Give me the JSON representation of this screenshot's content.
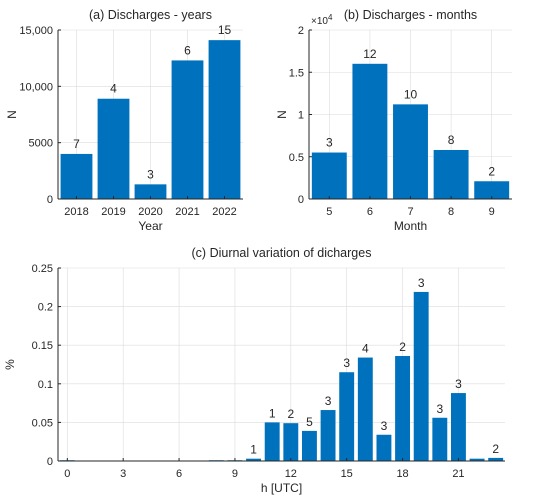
{
  "chart_data": [
    {
      "type": "bar",
      "title": "(a) Discharges - years",
      "xlabel": "Year",
      "ylabel": "N",
      "categories": [
        "2018",
        "2019",
        "2020",
        "2021",
        "2022"
      ],
      "values": [
        4000,
        8900,
        1300,
        12300,
        14100
      ],
      "bar_labels": [
        "7",
        "4",
        "3",
        "6",
        "15"
      ],
      "ylim": [
        0,
        15000
      ],
      "yticks": [
        0,
        5000,
        10000,
        15000
      ],
      "ytick_labels": [
        "0",
        "5000",
        "10,000",
        "15,000"
      ],
      "grid": true,
      "color": "#0072BD"
    },
    {
      "type": "bar",
      "title": "(b) Discharges - months",
      "xlabel": "Month",
      "ylabel": "N",
      "exponent_label": "×10^4",
      "categories": [
        "5",
        "6",
        "7",
        "8",
        "9"
      ],
      "values": [
        0.55,
        1.6,
        1.12,
        0.58,
        0.21
      ],
      "bar_labels": [
        "3",
        "12",
        "10",
        "8",
        "2"
      ],
      "ylim": [
        0,
        2
      ],
      "yticks": [
        0,
        0.5,
        1,
        1.5,
        2
      ],
      "ytick_labels": [
        "0",
        "0.5",
        "1",
        "1.5",
        "2"
      ],
      "grid": true,
      "color": "#0072BD"
    },
    {
      "type": "bar",
      "title": "(c) Diurnal variation of dicharges",
      "xlabel": "h [UTC]",
      "ylabel": "%",
      "categories": [
        "0",
        "1",
        "2",
        "3",
        "4",
        "5",
        "6",
        "7",
        "8",
        "9",
        "10",
        "11",
        "12",
        "13",
        "14",
        "15",
        "16",
        "17",
        "18",
        "19",
        "20",
        "21",
        "22",
        "23"
      ],
      "values": [
        0.001,
        0.0005,
        0.0005,
        0.0005,
        0,
        0,
        0,
        0,
        0.001,
        0.001,
        0.003,
        0.05,
        0.049,
        0.039,
        0.066,
        0.115,
        0.134,
        0.034,
        0.136,
        0.219,
        0.056,
        0.088,
        0.003,
        0.004
      ],
      "bar_labels": [
        "",
        "",
        "",
        "",
        "",
        "",
        "",
        "",
        "",
        "",
        "1",
        "1",
        "2",
        "5",
        "3",
        "3",
        "4",
        "3",
        "2",
        "3",
        "3",
        "3",
        "",
        "2"
      ],
      "xticks": [
        0,
        3,
        6,
        9,
        12,
        15,
        18,
        21
      ],
      "ylim": [
        0,
        0.25
      ],
      "yticks": [
        0,
        0.05,
        0.1,
        0.15,
        0.2,
        0.25
      ],
      "ytick_labels": [
        "0",
        "0.05",
        "0.1",
        "0.15",
        "0.2",
        "0.25"
      ],
      "grid": true,
      "color": "#0072BD"
    }
  ]
}
